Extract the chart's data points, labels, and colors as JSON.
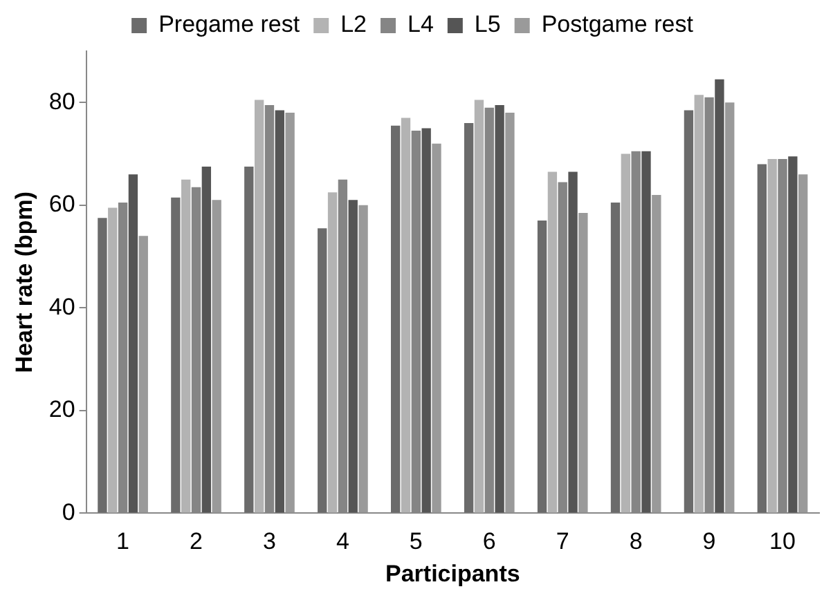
{
  "chart_data": {
    "type": "bar",
    "xlabel": "Participants",
    "ylabel": "Heart rate (bpm)",
    "categories": [
      "1",
      "2",
      "3",
      "4",
      "5",
      "6",
      "7",
      "8",
      "9",
      "10"
    ],
    "series": [
      {
        "name": "Pregame rest",
        "color": "#6b6b6b",
        "values": [
          57.5,
          61.5,
          67.5,
          55.5,
          75.5,
          76,
          57,
          60.5,
          78.5,
          68
        ]
      },
      {
        "name": "L2",
        "color": "#b3b3b3",
        "values": [
          59.5,
          65,
          80.5,
          62.5,
          77,
          80.5,
          66.5,
          70,
          81.5,
          69
        ]
      },
      {
        "name": "L4",
        "color": "#858585",
        "values": [
          60.5,
          63.5,
          79.5,
          65,
          74.5,
          79,
          64.5,
          70.5,
          81,
          69
        ]
      },
      {
        "name": "L5",
        "color": "#555555",
        "values": [
          66,
          67.5,
          78.5,
          61,
          75,
          79.5,
          66.5,
          70.5,
          84.5,
          69.5
        ]
      },
      {
        "name": "Postgame rest",
        "color": "#9a9a9a",
        "values": [
          54,
          61,
          78,
          60,
          72,
          78,
          58.5,
          62,
          80,
          66
        ]
      }
    ],
    "ylim": [
      0,
      90
    ],
    "yticks": [
      0,
      20,
      40,
      60,
      80
    ],
    "grid": false,
    "legend": "top"
  }
}
